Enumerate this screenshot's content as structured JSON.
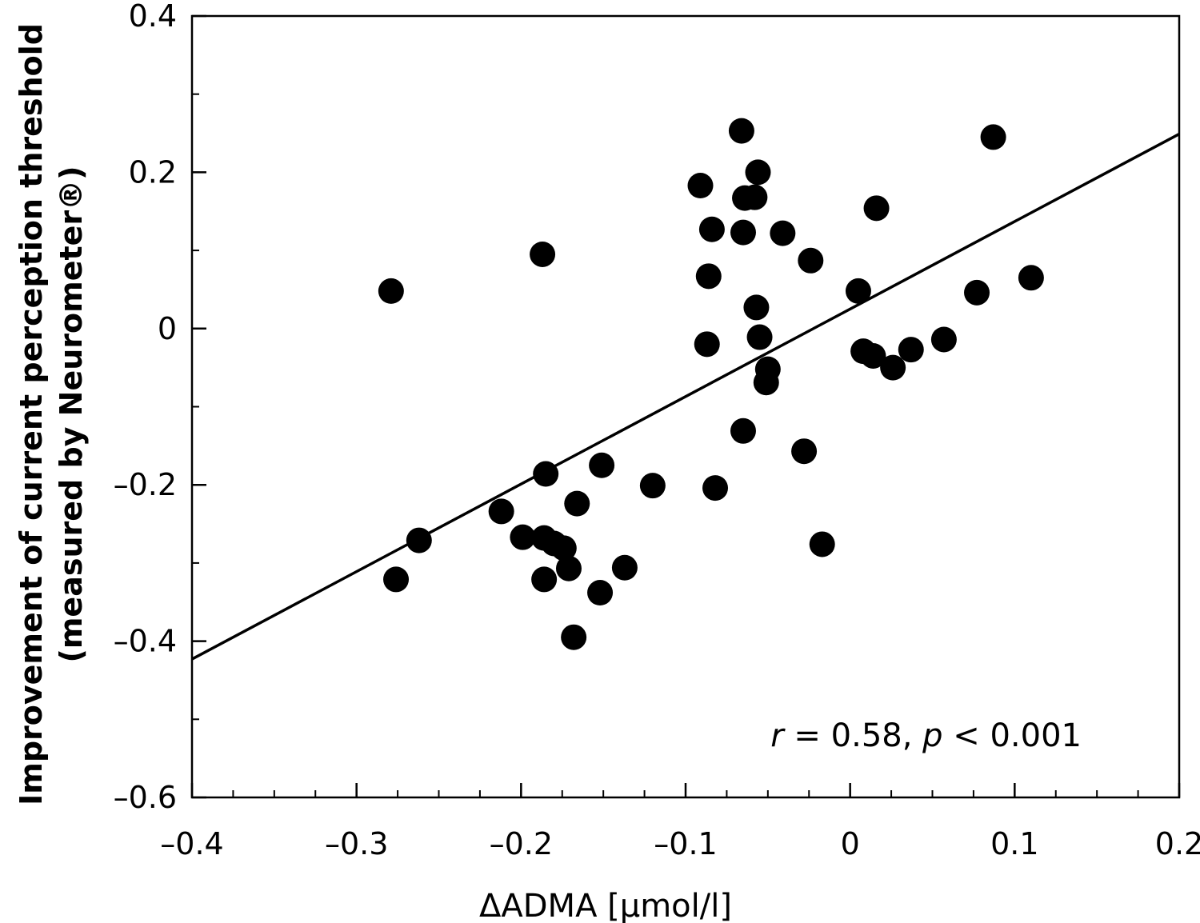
{
  "chart_data": {
    "type": "scatter",
    "xlabel": "ΔADMA [µmol/l]",
    "ylabel_line1": "Improvement of current perception threshold",
    "ylabel_line2": "(measured by Neurometer®)",
    "xlim": [
      -0.4,
      0.2
    ],
    "ylim": [
      -0.6,
      0.4
    ],
    "xticks": [
      -0.4,
      -0.3,
      -0.2,
      -0.1,
      0,
      0.1,
      0.2
    ],
    "xtick_labels": [
      "–0.4",
      "–0.3",
      "–0.2",
      "–0.1",
      "0",
      "0.1",
      "0.2"
    ],
    "yticks": [
      -0.6,
      -0.4,
      -0.2,
      0,
      0.2,
      0.4
    ],
    "ytick_labels": [
      "–0.6",
      "–0.4",
      "–0.2",
      "0",
      "0.2",
      "0.4"
    ],
    "x_minor_step": 0.025,
    "y_minor_step": 0.1,
    "grid": false,
    "annotation": {
      "r_symbol": "r",
      "r_text": " = 0.58, ",
      "p_symbol": "p",
      "p_text": " < 0.001"
    },
    "regression_line": {
      "x": [
        -0.4,
        0.2
      ],
      "y": [
        -0.423,
        0.249
      ]
    },
    "points": [
      {
        "x": -0.279,
        "y": 0.048
      },
      {
        "x": -0.276,
        "y": -0.321
      },
      {
        "x": -0.262,
        "y": -0.271
      },
      {
        "x": -0.212,
        "y": -0.234
      },
      {
        "x": -0.199,
        "y": -0.267
      },
      {
        "x": -0.187,
        "y": 0.095
      },
      {
        "x": -0.186,
        "y": -0.268
      },
      {
        "x": -0.185,
        "y": -0.186
      },
      {
        "x": -0.186,
        "y": -0.321
      },
      {
        "x": -0.18,
        "y": -0.275
      },
      {
        "x": -0.174,
        "y": -0.281
      },
      {
        "x": -0.171,
        "y": -0.307
      },
      {
        "x": -0.168,
        "y": -0.395
      },
      {
        "x": -0.166,
        "y": -0.224
      },
      {
        "x": -0.152,
        "y": -0.338
      },
      {
        "x": -0.151,
        "y": -0.175
      },
      {
        "x": -0.137,
        "y": -0.306
      },
      {
        "x": -0.12,
        "y": -0.201
      },
      {
        "x": -0.091,
        "y": 0.183
      },
      {
        "x": -0.087,
        "y": -0.02
      },
      {
        "x": -0.086,
        "y": 0.067
      },
      {
        "x": -0.084,
        "y": 0.127
      },
      {
        "x": -0.082,
        "y": -0.204
      },
      {
        "x": -0.066,
        "y": 0.253
      },
      {
        "x": -0.065,
        "y": 0.123
      },
      {
        "x": -0.065,
        "y": -0.131
      },
      {
        "x": -0.064,
        "y": 0.167
      },
      {
        "x": -0.058,
        "y": 0.168
      },
      {
        "x": -0.057,
        "y": 0.027
      },
      {
        "x": -0.056,
        "y": 0.2
      },
      {
        "x": -0.055,
        "y": -0.011
      },
      {
        "x": -0.051,
        "y": -0.069
      },
      {
        "x": -0.05,
        "y": -0.052
      },
      {
        "x": -0.041,
        "y": 0.122
      },
      {
        "x": -0.028,
        "y": -0.157
      },
      {
        "x": -0.024,
        "y": 0.087
      },
      {
        "x": -0.017,
        "y": -0.276
      },
      {
        "x": 0.005,
        "y": 0.048
      },
      {
        "x": 0.008,
        "y": -0.029
      },
      {
        "x": 0.014,
        "y": -0.035
      },
      {
        "x": 0.016,
        "y": 0.154
      },
      {
        "x": 0.026,
        "y": -0.05
      },
      {
        "x": 0.037,
        "y": -0.027
      },
      {
        "x": 0.057,
        "y": -0.014
      },
      {
        "x": 0.077,
        "y": 0.046
      },
      {
        "x": 0.087,
        "y": 0.245
      },
      {
        "x": 0.11,
        "y": 0.065
      }
    ],
    "marker_color": "#000000",
    "line_color": "#000000"
  }
}
